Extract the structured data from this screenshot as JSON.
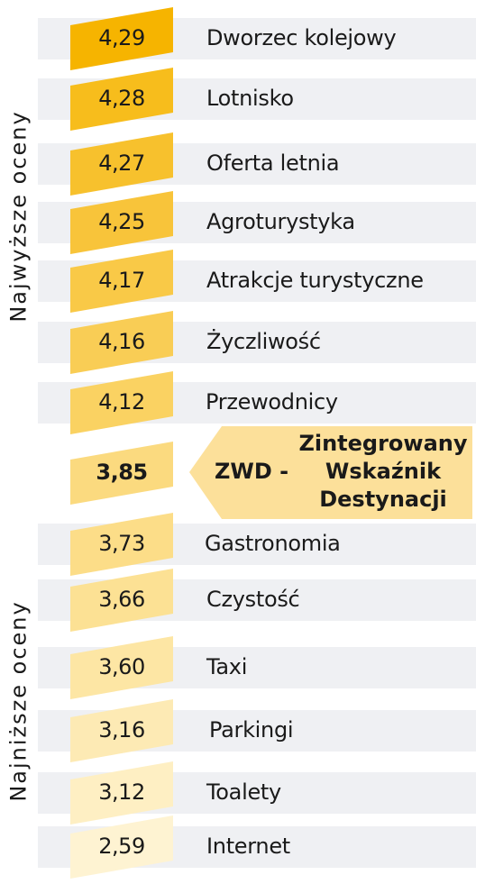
{
  "chart_data": {
    "type": "table",
    "side_labels": {
      "top": "Najwyższe oceny",
      "bottom": "Najniższe oceny"
    },
    "items": [
      {
        "value": "4,29",
        "label": "Dworzec kolejowy",
        "color": "#f6b400"
      },
      {
        "value": "4,28",
        "label": "Lotnisko",
        "color": "#f7bd1c"
      },
      {
        "value": "4,27",
        "label": "Oferta letnia",
        "color": "#f7c12d"
      },
      {
        "value": "4,25",
        "label": "Agroturystyka",
        "color": "#f8c43a"
      },
      {
        "value": "4,17",
        "label": "Atrakcje turystyczne",
        "color": "#f9c947"
      },
      {
        "value": "4,16",
        "label": "Życzliwość",
        "color": "#f9cd55"
      },
      {
        "value": "4,12",
        "label": "Przewodnicy",
        "color": "#fad262"
      },
      {
        "value": "3,85",
        "label": "",
        "color": "#fbda7f",
        "highlight": true
      },
      {
        "value": "3,73",
        "label": "Gastronomia",
        "color": "#fcdd88"
      },
      {
        "value": "3,66",
        "label": "Czystość",
        "color": "#fce194"
      },
      {
        "value": "3,60",
        "label": "Taxi",
        "color": "#fde6a4"
      },
      {
        "value": "3,16",
        "label": "Parkingi",
        "color": "#fdeab4"
      },
      {
        "value": "3,12",
        "label": "Toalety",
        "color": "#feefc3"
      },
      {
        "value": "2,59",
        "label": "Internet",
        "color": "#fef3d2"
      }
    ],
    "callout": {
      "short": "ZWD -",
      "long": "Zintegrowany Wskaźnik Destynacji",
      "color": "#fce09a"
    }
  }
}
